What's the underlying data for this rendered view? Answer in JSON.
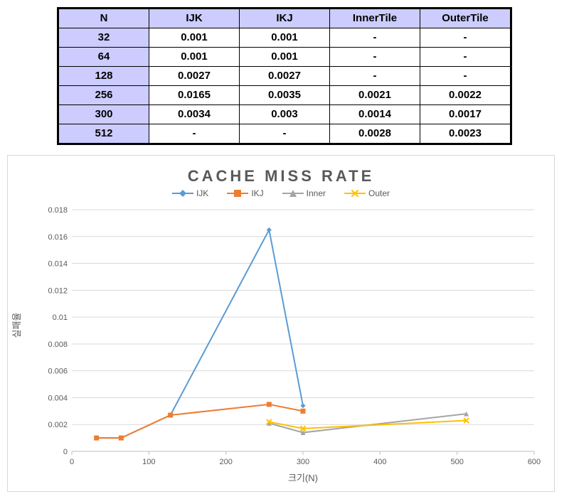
{
  "table": {
    "columns": [
      "N",
      "IJK",
      "IKJ",
      "InnerTile",
      "OuterTile"
    ],
    "rows": [
      [
        "32",
        "0.001",
        "0.001",
        "-",
        "-"
      ],
      [
        "64",
        "0.001",
        "0.001",
        "-",
        "-"
      ],
      [
        "128",
        "0.0027",
        "0.0027",
        "-",
        "-"
      ],
      [
        "256",
        "0.0165",
        "0.0035",
        "0.0021",
        "0.0022"
      ],
      [
        "300",
        "0.0034",
        "0.003",
        "0.0014",
        "0.0017"
      ],
      [
        "512",
        "-",
        "-",
        "0.0028",
        "0.0023"
      ]
    ],
    "header_bg": "#ccccff",
    "border_color": "#000000",
    "outer_border_width": 3,
    "font_size": 15
  },
  "chart": {
    "type": "line",
    "title": "CACHE MISS RATE",
    "title_fontsize": 22,
    "title_color": "#595959",
    "title_letter_spacing": 4,
    "xlabel": "크기(N)",
    "ylabel": "실패율",
    "label_fontsize": 13,
    "tick_fontsize": 11,
    "tick_color": "#595959",
    "background_color": "#ffffff",
    "grid_color": "#d9d9d9",
    "plot_border_color": "#bfbfbf",
    "xlim": [
      0,
      600
    ],
    "x_ticks": [
      0,
      100,
      200,
      300,
      400,
      500,
      600
    ],
    "ylim": [
      0,
      0.018
    ],
    "y_ticks": [
      0,
      0.002,
      0.004,
      0.006,
      0.008,
      0.01,
      0.012,
      0.014,
      0.016,
      0.018
    ],
    "line_width": 2,
    "marker_size": 7,
    "series": [
      {
        "name": "IJK",
        "legend_label": "IJK",
        "color": "#5b9bd5",
        "marker": "diamond",
        "x": [
          32,
          64,
          128,
          256,
          300
        ],
        "y": [
          0.001,
          0.001,
          0.0027,
          0.0165,
          0.0034
        ]
      },
      {
        "name": "IKJ",
        "legend_label": "IKJ",
        "color": "#ed7d31",
        "marker": "square",
        "x": [
          32,
          64,
          128,
          256,
          300
        ],
        "y": [
          0.001,
          0.001,
          0.0027,
          0.0035,
          0.003
        ]
      },
      {
        "name": "Inner",
        "legend_label": "Inner",
        "color": "#a5a5a5",
        "marker": "triangle",
        "x": [
          256,
          300,
          512
        ],
        "y": [
          0.0021,
          0.0014,
          0.0028
        ]
      },
      {
        "name": "Outer",
        "legend_label": "Outer",
        "color": "#ffc000",
        "marker": "xmark",
        "x": [
          256,
          300,
          512
        ],
        "y": [
          0.0022,
          0.0017,
          0.0023
        ]
      }
    ]
  }
}
